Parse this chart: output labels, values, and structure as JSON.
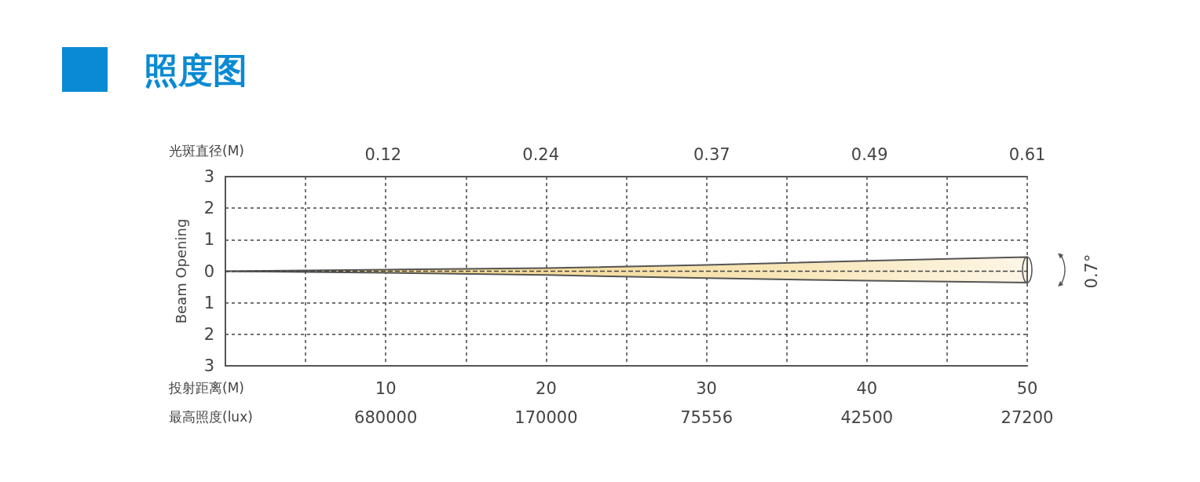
{
  "chart_data": {
    "type": "line",
    "title": "照度图",
    "x": [
      0,
      10,
      20,
      30,
      40,
      50
    ],
    "series": [
      {
        "color": "#444444",
        "line_style": "dashed",
        "values": [
          0,
          0,
          0,
          0,
          0,
          0
        ],
        "lower": [
          0,
          -0.05,
          -0.12,
          -0.22,
          -0.3,
          -0.36
        ],
        "upper": [
          0,
          0.05,
          0.1,
          0.2,
          0.33,
          0.45
        ]
      }
    ],
    "xlim": [
      0,
      50
    ],
    "xticks": [
      {
        "value": 5,
        "label": null
      },
      10,
      {
        "value": 15,
        "label": null
      },
      20,
      {
        "value": 25,
        "label": null
      },
      30,
      {
        "value": 35,
        "label": null
      },
      40,
      {
        "value": 45,
        "label": null
      },
      50
    ],
    "xlabel": "投射距离(M)",
    "x2lim": [
      0,
      0.61
    ],
    "x2ticks": [
      0.12,
      0.24,
      0.37,
      0.49,
      0.61
    ],
    "x2label": "光斑直径(M)",
    "ylim": [
      -3,
      3
    ],
    "yticks": [
      {
        "value": -3,
        "label": "3"
      },
      {
        "value": -2,
        "label": "2"
      },
      {
        "value": -1,
        "label": "1"
      },
      0,
      1,
      2,
      3
    ],
    "ylabel": "Beam Opening",
    "annotations": [
      "最高照度(lux)",
      "680000",
      "170000",
      "75556",
      "42500",
      "27200",
      "0.7°"
    ],
    "grid": true,
    "marker": "none"
  }
}
